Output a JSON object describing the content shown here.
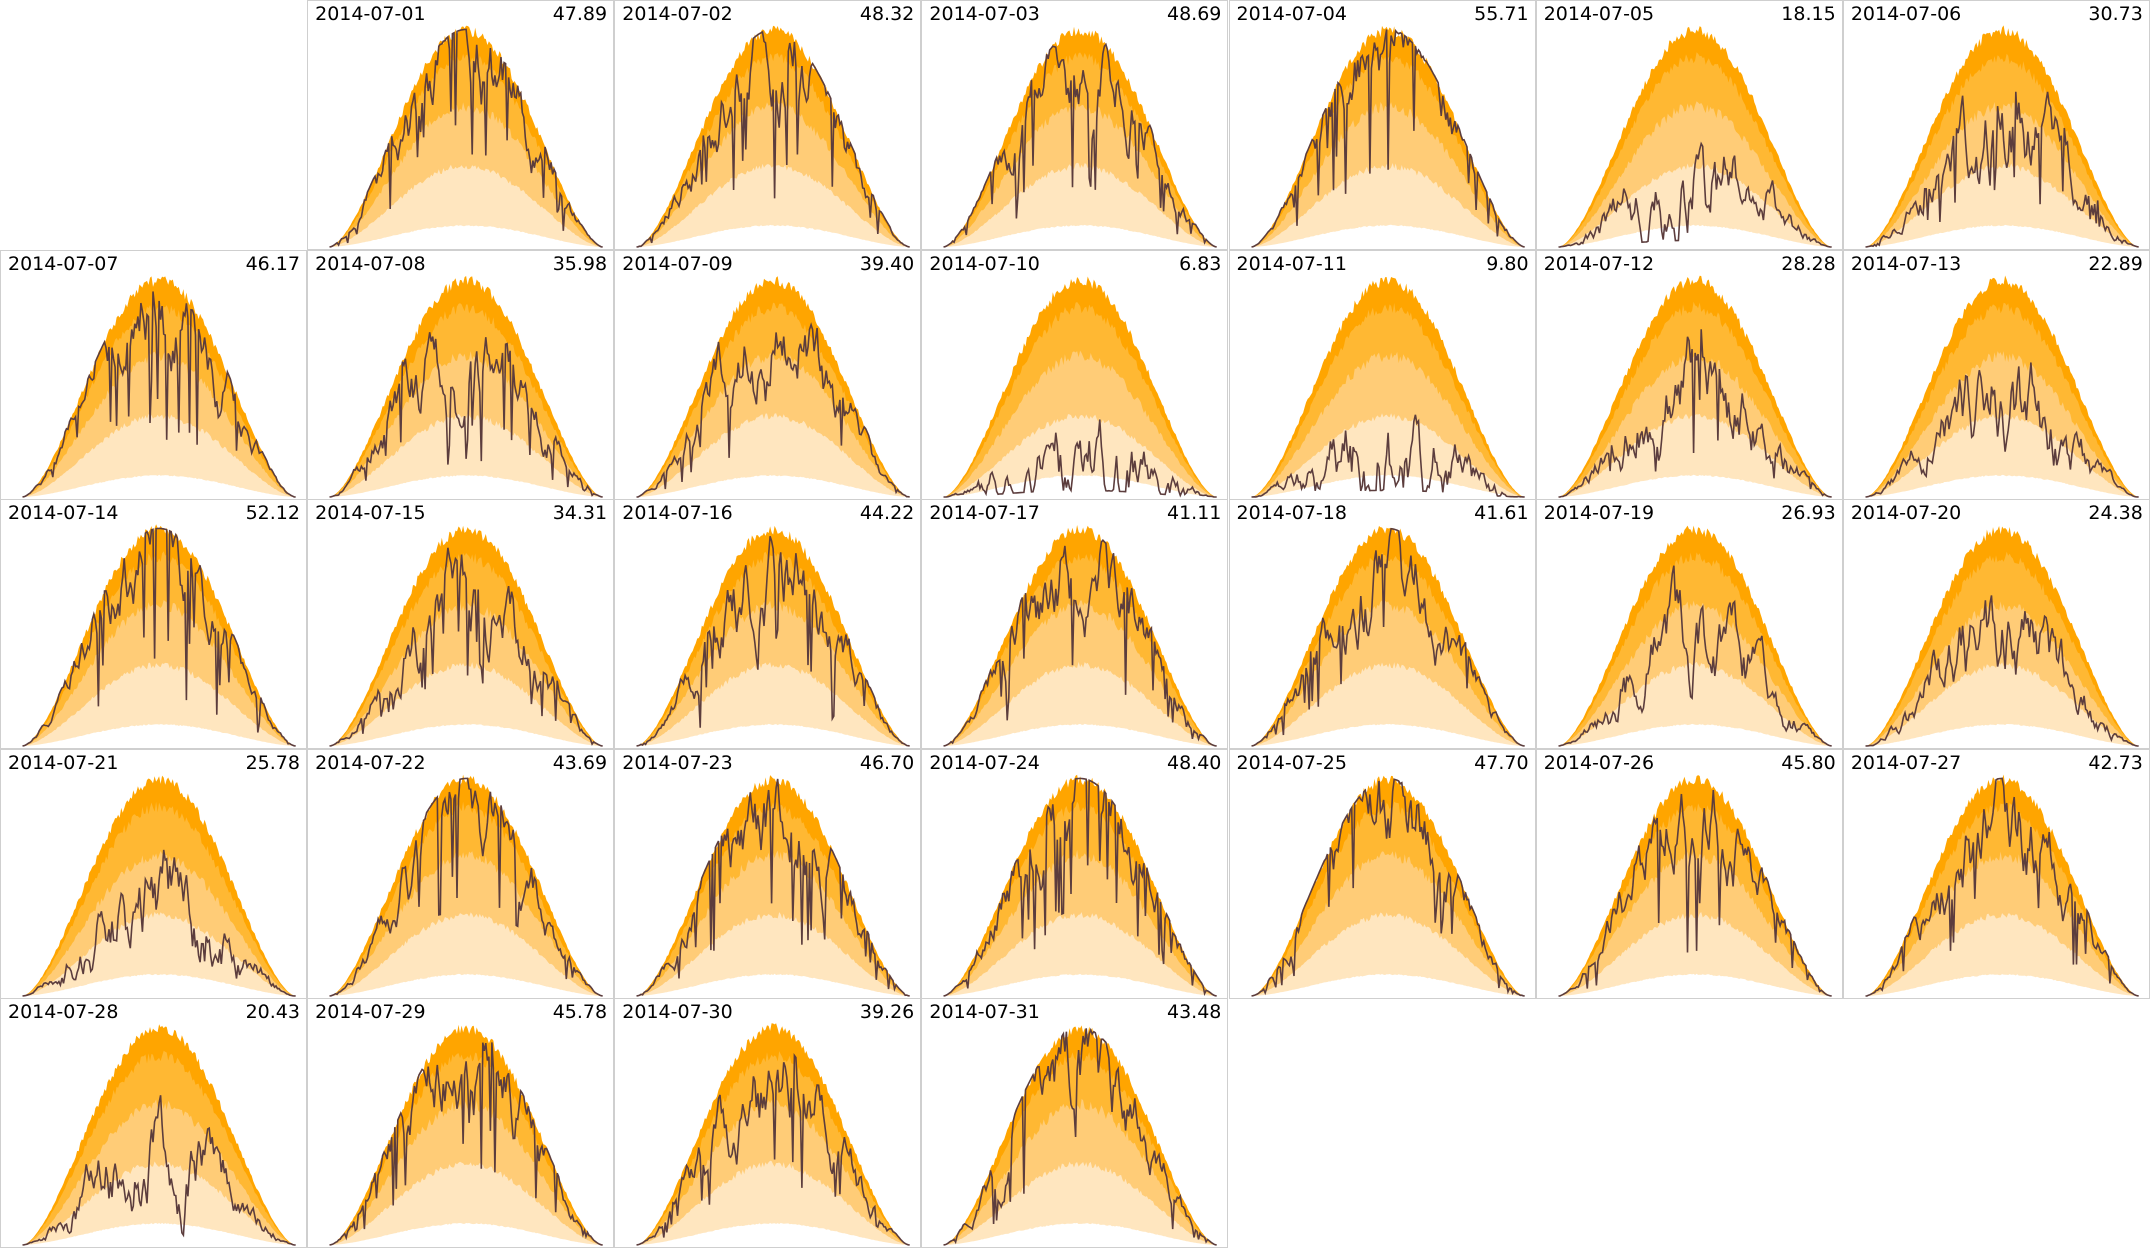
{
  "chart_data": {
    "type": "area",
    "layout": "calendar small multiples, 7 columns, Monday-first weeks",
    "band_colors": [
      "#FFA500",
      "#FFB833",
      "#FFCC77",
      "#FFE6BF",
      "#FFFFFF"
    ],
    "line_color": "#5C3D3D",
    "grid": false,
    "panels": [
      {
        "date": "2014-07-01",
        "value": "47.89"
      },
      {
        "date": "2014-07-02",
        "value": "48.32"
      },
      {
        "date": "2014-07-03",
        "value": "48.69"
      },
      {
        "date": "2014-07-04",
        "value": "55.71"
      },
      {
        "date": "2014-07-05",
        "value": "18.15"
      },
      {
        "date": "2014-07-06",
        "value": "30.73"
      },
      {
        "date": "2014-07-07",
        "value": "46.17"
      },
      {
        "date": "2014-07-08",
        "value": "35.98"
      },
      {
        "date": "2014-07-09",
        "value": "39.40"
      },
      {
        "date": "2014-07-10",
        "value": "6.83"
      },
      {
        "date": "2014-07-11",
        "value": "9.80"
      },
      {
        "date": "2014-07-12",
        "value": "28.28"
      },
      {
        "date": "2014-07-13",
        "value": "22.89"
      },
      {
        "date": "2014-07-14",
        "value": "52.12"
      },
      {
        "date": "2014-07-15",
        "value": "34.31"
      },
      {
        "date": "2014-07-16",
        "value": "44.22"
      },
      {
        "date": "2014-07-17",
        "value": "41.11"
      },
      {
        "date": "2014-07-18",
        "value": "41.61"
      },
      {
        "date": "2014-07-19",
        "value": "26.93"
      },
      {
        "date": "2014-07-20",
        "value": "24.38"
      },
      {
        "date": "2014-07-21",
        "value": "25.78"
      },
      {
        "date": "2014-07-22",
        "value": "43.69"
      },
      {
        "date": "2014-07-23",
        "value": "46.70"
      },
      {
        "date": "2014-07-24",
        "value": "48.40"
      },
      {
        "date": "2014-07-25",
        "value": "47.70"
      },
      {
        "date": "2014-07-26",
        "value": "45.80"
      },
      {
        "date": "2014-07-27",
        "value": "42.73"
      },
      {
        "date": "2014-07-28",
        "value": "20.43"
      },
      {
        "date": "2014-07-29",
        "value": "45.78"
      },
      {
        "date": "2014-07-30",
        "value": "39.26"
      },
      {
        "date": "2014-07-31",
        "value": "43.48"
      }
    ]
  }
}
